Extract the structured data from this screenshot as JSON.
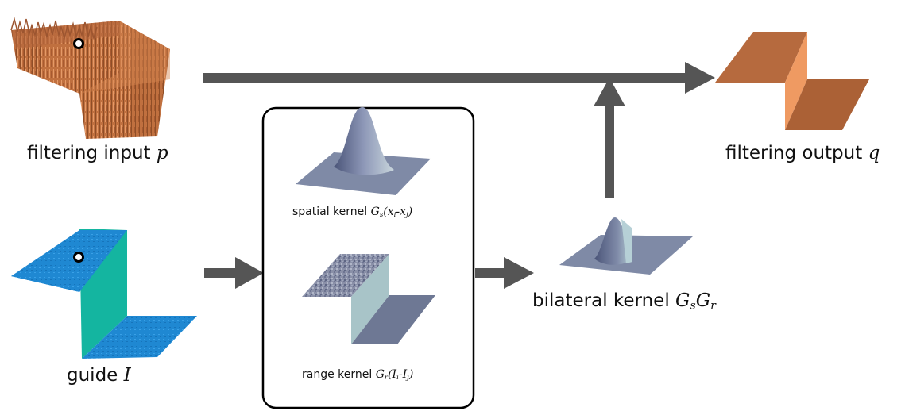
{
  "labels": {
    "input": {
      "text": "filtering input ",
      "var": "p"
    },
    "guide": {
      "text": "guide ",
      "var": "I"
    },
    "output": {
      "text": "filtering output ",
      "var": "q"
    },
    "spatial": {
      "text": "spatial kernel ",
      "sym": "G",
      "sub": "s",
      "args": "(x",
      "a1": "i",
      "dash": "-x",
      "a2": "j",
      "close": ")"
    },
    "range": {
      "text": "range kernel ",
      "sym": "G",
      "sub": "r",
      "args": "(I",
      "a1": "i",
      "dash": "-I",
      "a2": "j",
      "close": ")"
    },
    "bilateral": {
      "text": "bilateral kernel ",
      "g1": "G",
      "s1": "s",
      "g2": "G",
      "s2": "r"
    }
  },
  "colors": {
    "arrow": "#555555",
    "input_surface": "#c77a4a",
    "guide_surface": "#1e86d0",
    "guide_wall": "#14b5a0",
    "output_top": "#b5683e",
    "output_wall": "#ef9a62",
    "kernel_plate": "#7f8aa6",
    "kernel_peak": "#5a6488",
    "range_wall": "#a8c4c8"
  }
}
